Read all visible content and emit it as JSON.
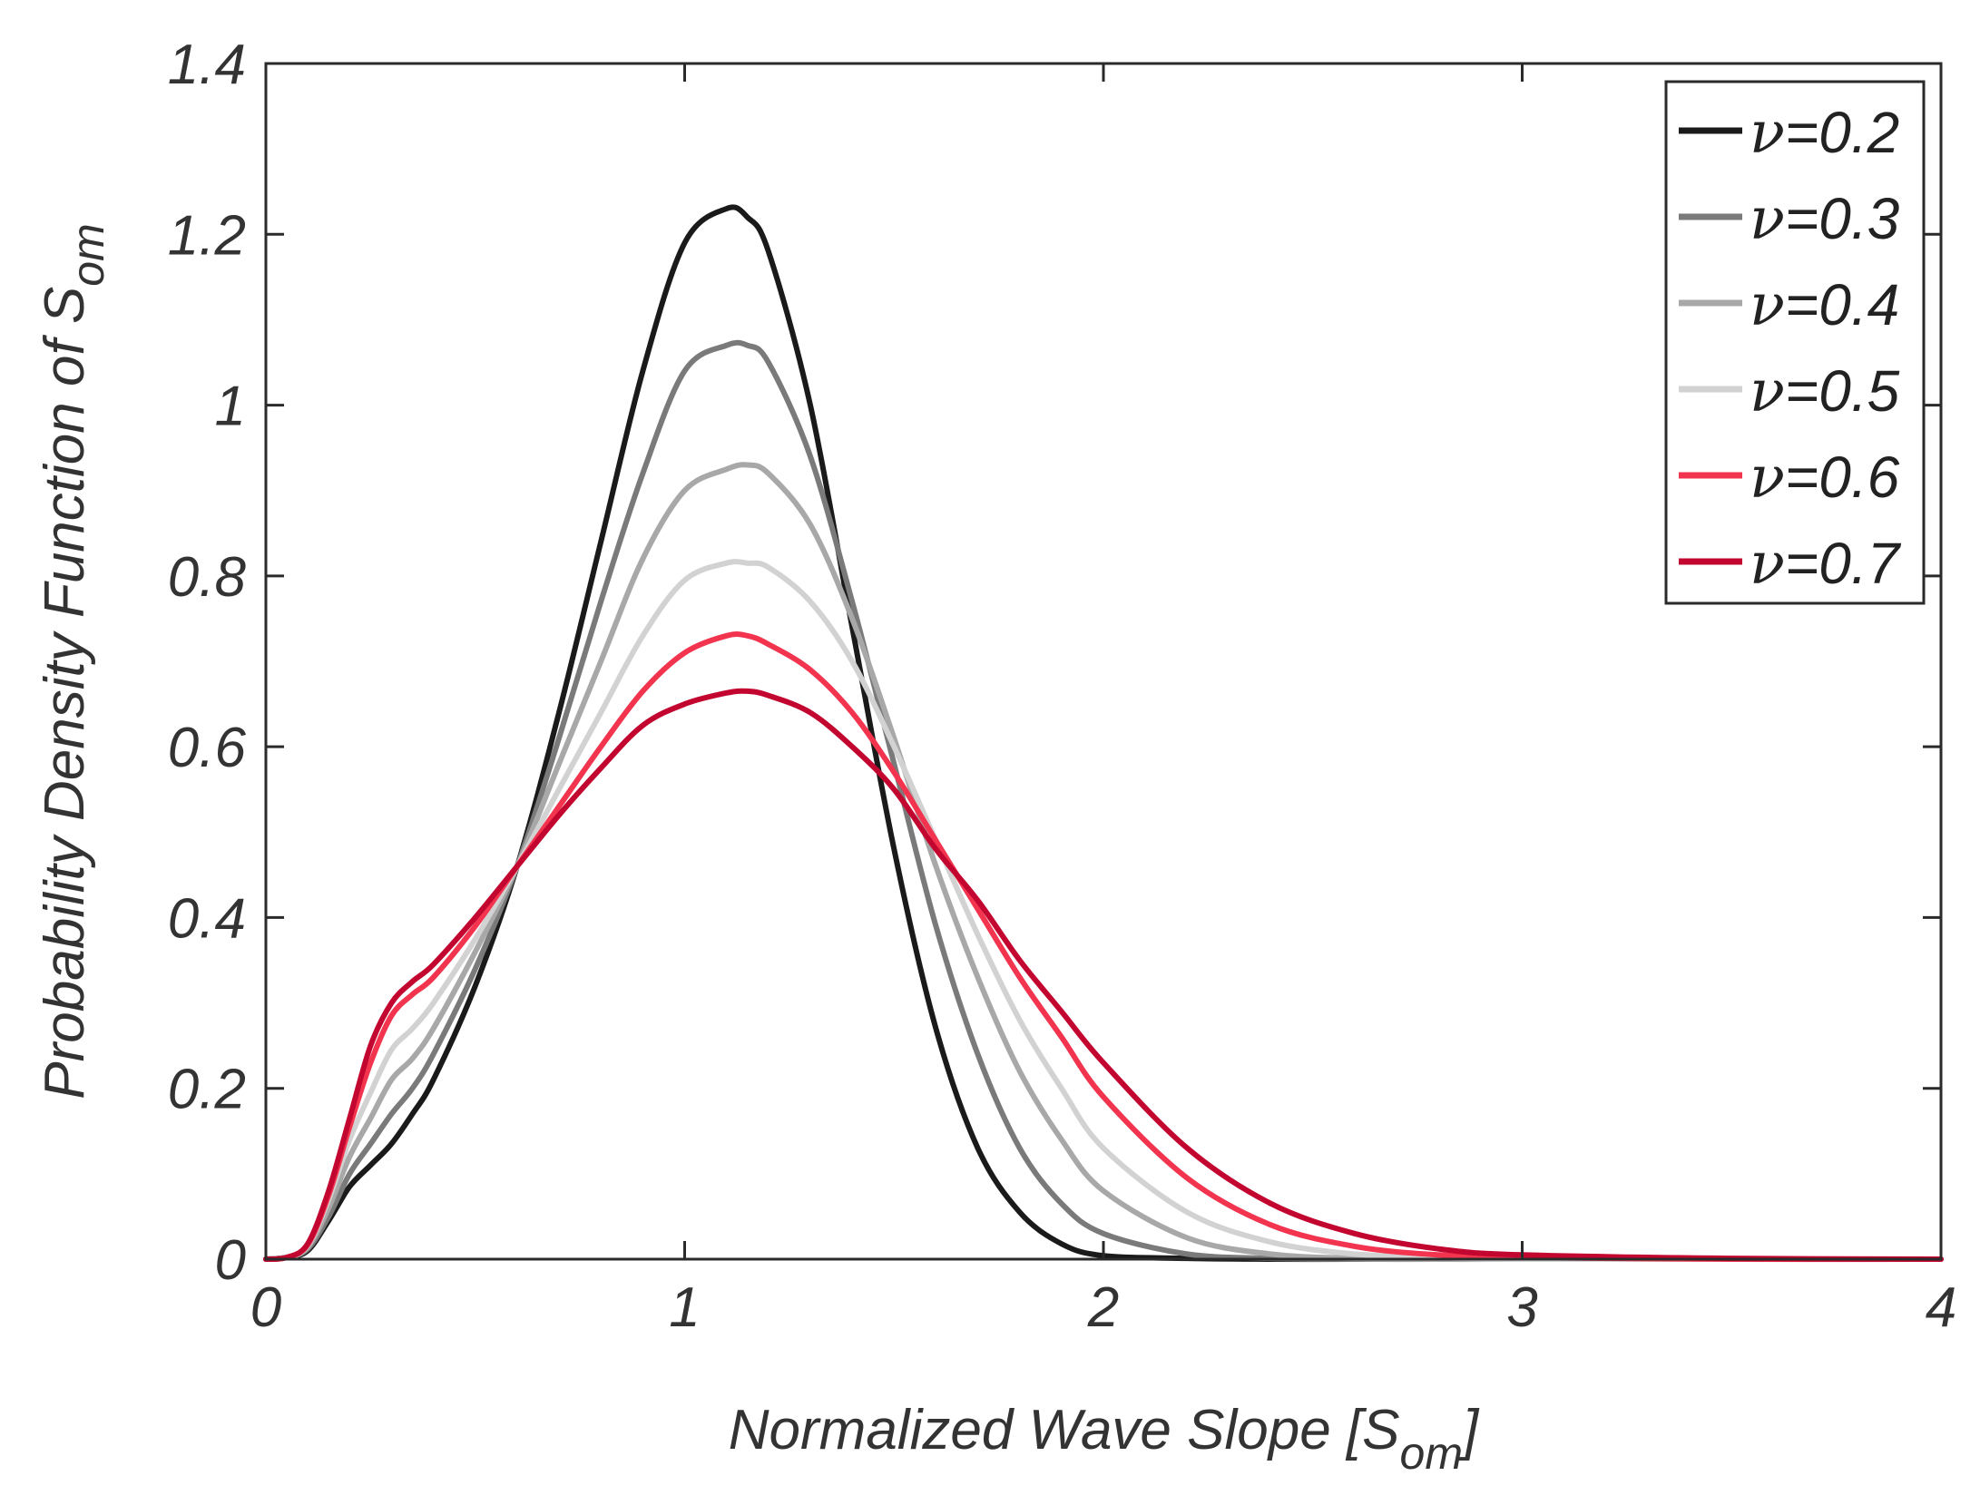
{
  "chart_data": {
    "type": "line",
    "title": "",
    "xlabel": {
      "text": "Normalized Wave Slope [S",
      "sub": "om",
      "suffix": "]"
    },
    "ylabel": {
      "text": "Probability Density Function of S",
      "sub": "om"
    },
    "xlim": [
      0,
      4
    ],
    "ylim": [
      0,
      1.4
    ],
    "xticks": [
      0,
      1,
      2,
      3,
      4
    ],
    "xtick_labels": [
      "0",
      "1",
      "2",
      "3",
      "4"
    ],
    "yticks": [
      0,
      0.2,
      0.4,
      0.6,
      0.8,
      1.0,
      1.2,
      1.4
    ],
    "ytick_labels": [
      "0",
      "0.2",
      "0.4",
      "0.6",
      "0.8",
      "1",
      "1.2",
      "1.4"
    ],
    "grid": false,
    "legend_position": "top-right",
    "x": [
      0,
      0.05,
      0.1,
      0.15,
      0.2,
      0.25,
      0.3,
      0.35,
      0.4,
      0.5,
      0.6,
      0.7,
      0.8,
      0.9,
      1.0,
      1.1,
      1.15,
      1.2,
      1.3,
      1.4,
      1.5,
      1.6,
      1.7,
      1.8,
      1.9,
      2.0,
      2.2,
      2.4,
      2.6,
      2.8,
      3.0,
      3.5,
      4.0
    ],
    "series": [
      {
        "name": "ν=0.2",
        "label_prefix": "ν",
        "label_value": "=0.2",
        "color": "#1a1a1a",
        "values": [
          0,
          0.002,
          0.01,
          0.045,
          0.085,
          0.11,
          0.135,
          0.17,
          0.21,
          0.32,
          0.46,
          0.64,
          0.84,
          1.04,
          1.19,
          1.23,
          1.22,
          1.18,
          1.0,
          0.74,
          0.48,
          0.27,
          0.13,
          0.055,
          0.018,
          0.004,
          0.001,
          0,
          0,
          0,
          0,
          0,
          0
        ]
      },
      {
        "name": "ν=0.3",
        "label_prefix": "ν",
        "label_value": "=0.3",
        "color": "#7a7a7a",
        "values": [
          0,
          0.002,
          0.012,
          0.05,
          0.1,
          0.135,
          0.17,
          0.2,
          0.24,
          0.34,
          0.46,
          0.61,
          0.77,
          0.92,
          1.04,
          1.07,
          1.07,
          1.05,
          0.94,
          0.77,
          0.58,
          0.39,
          0.24,
          0.13,
          0.065,
          0.03,
          0.006,
          0.001,
          0,
          0,
          0,
          0,
          0
        ]
      },
      {
        "name": "ν=0.4",
        "label_prefix": "ν",
        "label_value": "=0.4",
        "color": "#a8a8a8",
        "values": [
          0,
          0.002,
          0.014,
          0.06,
          0.12,
          0.165,
          0.21,
          0.235,
          0.27,
          0.36,
          0.46,
          0.58,
          0.7,
          0.82,
          0.9,
          0.925,
          0.93,
          0.92,
          0.86,
          0.75,
          0.61,
          0.46,
          0.33,
          0.22,
          0.14,
          0.08,
          0.025,
          0.006,
          0.001,
          0,
          0,
          0,
          0
        ]
      },
      {
        "name": "ν=0.5",
        "label_prefix": "ν",
        "label_value": "=0.5",
        "color": "#d2d2d2",
        "values": [
          0,
          0.002,
          0.016,
          0.07,
          0.14,
          0.195,
          0.245,
          0.27,
          0.3,
          0.375,
          0.46,
          0.55,
          0.64,
          0.73,
          0.795,
          0.815,
          0.815,
          0.81,
          0.77,
          0.7,
          0.6,
          0.49,
          0.38,
          0.28,
          0.2,
          0.13,
          0.055,
          0.02,
          0.006,
          0.002,
          0,
          0,
          0
        ]
      },
      {
        "name": "ν=0.6",
        "label_prefix": "ν",
        "label_value": "=0.6",
        "color": "#f2344f",
        "values": [
          0,
          0.002,
          0.017,
          0.075,
          0.155,
          0.23,
          0.285,
          0.31,
          0.33,
          0.39,
          0.46,
          0.53,
          0.6,
          0.665,
          0.71,
          0.73,
          0.73,
          0.72,
          0.69,
          0.64,
          0.57,
          0.49,
          0.41,
          0.33,
          0.26,
          0.19,
          0.095,
          0.04,
          0.015,
          0.005,
          0.002,
          0,
          0
        ]
      },
      {
        "name": "ν=0.7",
        "label_prefix": "ν",
        "label_value": "=0.7",
        "color": "#c2062f",
        "values": [
          0,
          0.002,
          0.018,
          0.08,
          0.165,
          0.25,
          0.3,
          0.325,
          0.345,
          0.4,
          0.46,
          0.52,
          0.575,
          0.625,
          0.65,
          0.663,
          0.665,
          0.66,
          0.64,
          0.6,
          0.55,
          0.48,
          0.42,
          0.35,
          0.29,
          0.23,
          0.13,
          0.065,
          0.03,
          0.012,
          0.005,
          0.001,
          0
        ]
      }
    ]
  }
}
